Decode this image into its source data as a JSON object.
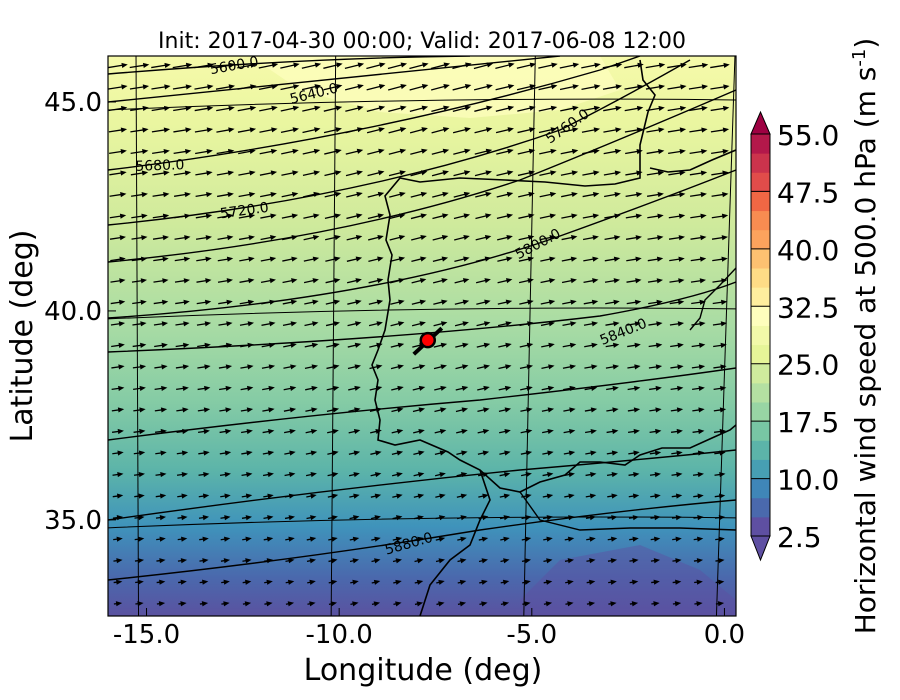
{
  "chart_data": {
    "type": "heatmap",
    "title": "Init: 2017-04-30 00:00; Valid: 2017-06-08 12:00",
    "xlabel": "Longitude (deg)",
    "ylabel": "Latitude (deg)",
    "xlim": [
      -16.0,
      0.3
    ],
    "ylim": [
      32.7,
      46.1
    ],
    "xticks": [
      -15.0,
      -10.0,
      -5.0,
      0.0
    ],
    "xtick_labels": [
      "-15.0",
      "-10.0",
      "-5.0",
      "0.0"
    ],
    "yticks": [
      35.0,
      40.0,
      45.0
    ],
    "ytick_labels": [
      "35.0",
      "40.0",
      "45.0"
    ],
    "colorbar": {
      "label": "Horizontal wind speed at 500.0 hPa (m s$^{-1}$)",
      "label_text": "Horizontal wind speed at 500.0 hPa (m s",
      "label_superscript": "-1",
      "label_close": ")",
      "min": 2.5,
      "max": 55.0,
      "step": 2.5,
      "extend": "both",
      "tick_values": [
        2.5,
        10.0,
        17.5,
        25.0,
        32.5,
        40.0,
        47.5,
        55.0
      ],
      "tick_labels": [
        "2.5",
        "10.0",
        "17.5",
        "25.0",
        "32.5",
        "40.0",
        "47.5",
        "55.0"
      ],
      "colormap": "Spectral_r",
      "colors": [
        "#5e4fa2",
        "#4a69ad",
        "#3f86b8",
        "#479fb3",
        "#5cb4a9",
        "#78c6a4",
        "#98d5a4",
        "#b4e0a2",
        "#cfeb9d",
        "#e6f598",
        "#f2f9a9",
        "#fefebd",
        "#feee9e",
        "#fedc86",
        "#fdc171",
        "#fca35d",
        "#f88c51",
        "#f06744",
        "#e14c4a",
        "#cb334c",
        "#b3184a",
        "#9e0142"
      ]
    },
    "wind_speed_field": {
      "units": "m s-1",
      "value_range_approx": [
        3,
        30
      ],
      "pattern": "strongest over the northern Atlantic (about 25-28 m/s near 44-46N, 10-4W), decreasing southward to about 3-8 m/s near 33N"
    },
    "height_contours": {
      "units": "gpm at 500 hPa",
      "levels": [
        5600.0,
        5640.0,
        5680.0,
        5720.0,
        5760.0,
        5800.0,
        5840.0,
        5880.0
      ],
      "labels": [
        "5600.0",
        "5640.0",
        "5680.0",
        "5720.0",
        "5760.0",
        "5800.0",
        "5840.0",
        "5880.0"
      ]
    },
    "wind_vectors": {
      "type": "quiver",
      "direction": "predominantly from the west-southwest",
      "color": "#000000"
    },
    "marker": {
      "lon": -7.7,
      "lat": 39.3,
      "color": "#ff0000",
      "edge_color": "#000000"
    },
    "projection": "Lambert conformal",
    "legend": "none",
    "grid": true,
    "grid_meridians": [
      -15,
      -10,
      -5,
      0
    ],
    "grid_parallels": [
      35,
      40,
      45
    ]
  }
}
